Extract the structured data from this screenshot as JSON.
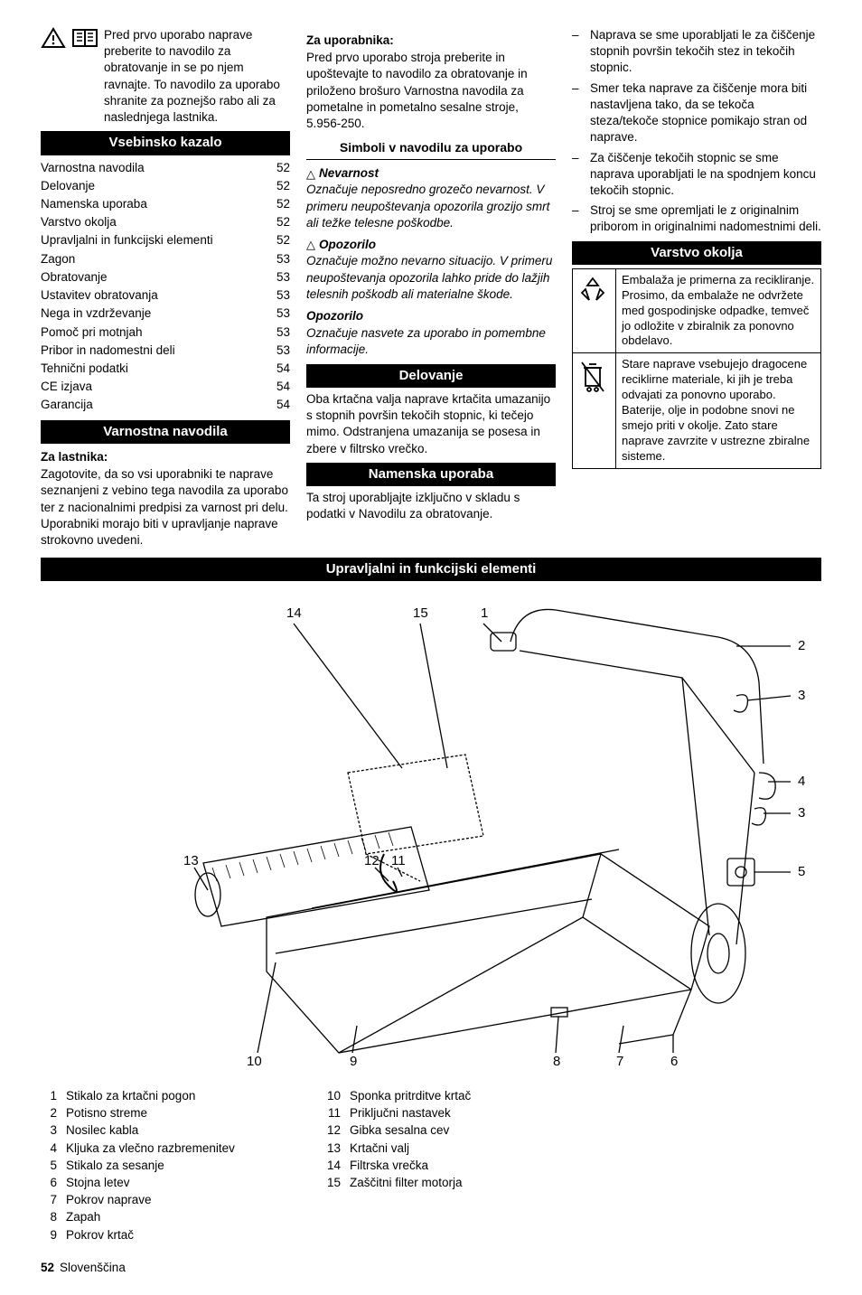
{
  "intro": "Pred prvo uporabo naprave preberite to navodilo za obratovanje in se po njem ravnajte. To navodilo za uporabo shranite za poznejšo rabo ali za naslednjega lastnika.",
  "toc_header": "Vsebinsko kazalo",
  "toc": [
    {
      "label": "Varnostna navodila",
      "page": "52"
    },
    {
      "label": "Delovanje",
      "page": "52"
    },
    {
      "label": "Namenska uporaba",
      "page": "52"
    },
    {
      "label": "Varstvo okolja",
      "page": "52"
    },
    {
      "label": "Upravljalni in funkcijski elementi",
      "page": "52"
    },
    {
      "label": "Zagon",
      "page": "53"
    },
    {
      "label": "Obratovanje",
      "page": "53"
    },
    {
      "label": "Ustavitev obratovanja",
      "page": "53"
    },
    {
      "label": "Nega in vzdrževanje",
      "page": "53"
    },
    {
      "label": "Pomoč pri motnjah",
      "page": "53"
    },
    {
      "label": "Pribor in nadomestni deli",
      "page": "53"
    },
    {
      "label": "Tehnični podatki",
      "page": "54"
    },
    {
      "label": "CE izjava",
      "page": "54"
    },
    {
      "label": "Garancija",
      "page": "54"
    }
  ],
  "safety_header": "Varnostna navodila",
  "safety_owner_title": "Za lastnika:",
  "safety_owner_text": "Zagotovite, da so vsi uporabniki te naprave seznanjeni z vebino tega navodila za uporabo ter z nacionalnimi predpisi za varnost pri delu. Uporabniki morajo biti v upravljanje naprave strokovno uvedeni.",
  "safety_user_title": "Za uporabnika:",
  "safety_user_text": "Pred prvo uporabo stroja preberite in upoštevajte to navodilo za obratovanje in priloženo brošuro Varnostna navodila za pometalne in pometalno sesalne stroje, 5.956-250.",
  "symbols_header": "Simboli v navodilu za uporabo",
  "danger_title": "Nevarnost",
  "danger_text": "Označuje neposredno grozečo nevarnost. V primeru neupoštevanja opozorila grozijo smrt ali težke telesne poškodbe.",
  "warning_title": "Opozorilo",
  "warning_text": "Označuje možno nevarno situacijo. V primeru neupoštevanja opozorila lahko pride do lažjih telesnih poškodb ali materialne škode.",
  "notice_title": "Opozorilo",
  "notice_text": "Označuje nasvete za uporabo in pomembne informacije.",
  "operation_header": "Delovanje",
  "operation_text": "Oba krtačna valja naprave krtačita umazanijo s stopnih površin tekočih stopnic, ki tečejo mimo. Odstranjena umazanija se posesa in zbere v filtrsko vrečko.",
  "intended_header": "Namenska uporaba",
  "intended_text": "Ta stroj uporabljajte izključno v skladu s podatki v Navodilu za obratovanje.",
  "intended_list": [
    "Naprava se sme uporabljati le za čiščenje stopnih površin tekočih stez in tekočih stopnic.",
    "Smer teka naprave za čiščenje mora biti nastavljena tako, da se tekoča steza/tekoče stopnice pomikajo stran od naprave.",
    "Za čiščenje tekočih stopnic se sme naprava uporabljati le na spodnjem koncu tekočih stopnic.",
    "Stroj se sme opremljati le z originalnim priborom in originalnimi nadomestnimi deli."
  ],
  "env_header": "Varstvo okolja",
  "env_row1": "Embalaža je primerna za recikliranje. Prosimo, da embalaže ne odvržete med gospodinjske odpadke, temveč jo odložite v zbiralnik za ponovno obdelavo.",
  "env_row2": "Stare naprave vsebujejo dragocene reciklirne materiale, ki jih je treba odvajati za ponovno uporabo. Baterije, olje in podobne snovi ne smejo priti v okolje. Zato stare naprave zavrzite v ustrezne zbiralne sisteme.",
  "controls_header": "Upravljalni in funkcijski elementi",
  "parts": [
    {
      "n": "1",
      "t": "Stikalo za krtačni pogon"
    },
    {
      "n": "2",
      "t": "Potisno streme"
    },
    {
      "n": "3",
      "t": "Nosilec kabla"
    },
    {
      "n": "4",
      "t": "Kljuka za vlečno razbremenitev"
    },
    {
      "n": "5",
      "t": "Stikalo za sesanje"
    },
    {
      "n": "6",
      "t": "Stojna letev"
    },
    {
      "n": "7",
      "t": "Pokrov naprave"
    },
    {
      "n": "8",
      "t": "Zapah"
    },
    {
      "n": "9",
      "t": "Pokrov krtač"
    }
  ],
  "parts2": [
    {
      "n": "10",
      "t": "Sponka pritrditve krtač"
    },
    {
      "n": "11",
      "t": "Priključni nastavek"
    },
    {
      "n": "12",
      "t": "Gibka sesalna cev"
    },
    {
      "n": "13",
      "t": "Krtačni valj"
    },
    {
      "n": "14",
      "t": "Filtrska vrečka"
    },
    {
      "n": "15",
      "t": "Zaščitni filter motorja"
    }
  ],
  "diagram_labels": [
    "14",
    "15",
    "1",
    "2",
    "3",
    "4",
    "3",
    "5",
    "13",
    "12",
    "11",
    "10",
    "9",
    "8",
    "7",
    "6"
  ],
  "footer_page": "52",
  "footer_lang": "Slovenščina"
}
